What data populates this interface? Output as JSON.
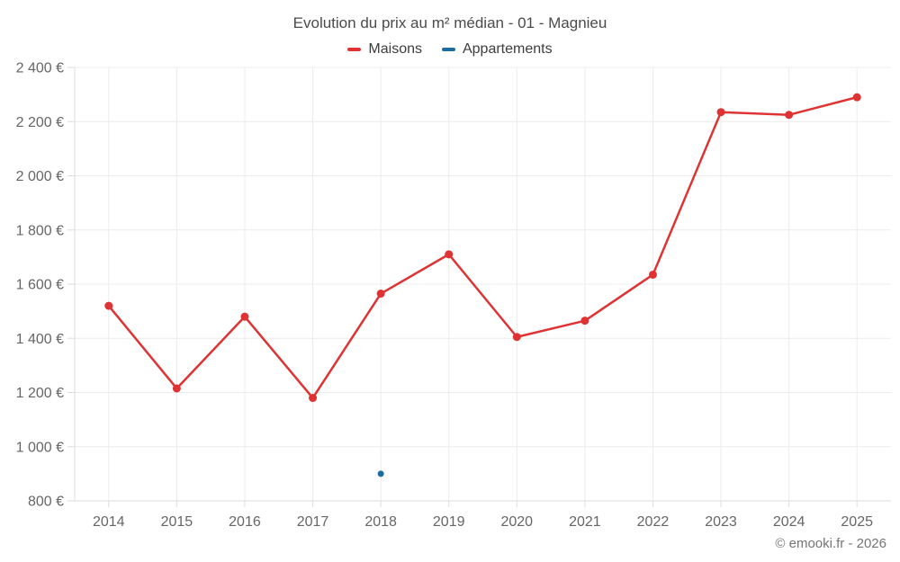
{
  "chart": {
    "title": "Evolution du prix au m² médian - 01 - Magnieu"
  },
  "footer": {
    "copyright": "© emooki.fr - 2026"
  },
  "colors": {
    "maisons": "#df3333",
    "appartements": "#1a6ca3",
    "gridline": "#ececec",
    "axis_line": "#dddddd",
    "tick_label": "#666666",
    "background": "#ffffff"
  },
  "chart_data": {
    "type": "line",
    "title": "Evolution du prix au m² médian - 01 - Magnieu",
    "x": [
      2014,
      2015,
      2016,
      2017,
      2018,
      2019,
      2020,
      2021,
      2022,
      2023,
      2024,
      2025
    ],
    "series": [
      {
        "name": "Maisons",
        "color_key": "maisons",
        "show_line": true,
        "line_width": 2.5,
        "point_radius": 4.5,
        "values": [
          1520,
          1215,
          1480,
          1180,
          1565,
          1710,
          1405,
          1465,
          1635,
          2235,
          2225,
          2290
        ]
      },
      {
        "name": "Appartements",
        "color_key": "appartements",
        "show_line": false,
        "line_width": 2.5,
        "point_radius": 3.5,
        "values": [
          null,
          null,
          null,
          null,
          900,
          null,
          null,
          null,
          null,
          null,
          null,
          null
        ]
      }
    ],
    "xlabel": "",
    "ylabel": "",
    "ylim": [
      800,
      2400
    ],
    "y_ticks": [
      800,
      1000,
      1200,
      1400,
      1600,
      1800,
      2000,
      2200,
      2400
    ],
    "y_tick_suffix": " €",
    "grid": true,
    "legend_position": "top"
  }
}
